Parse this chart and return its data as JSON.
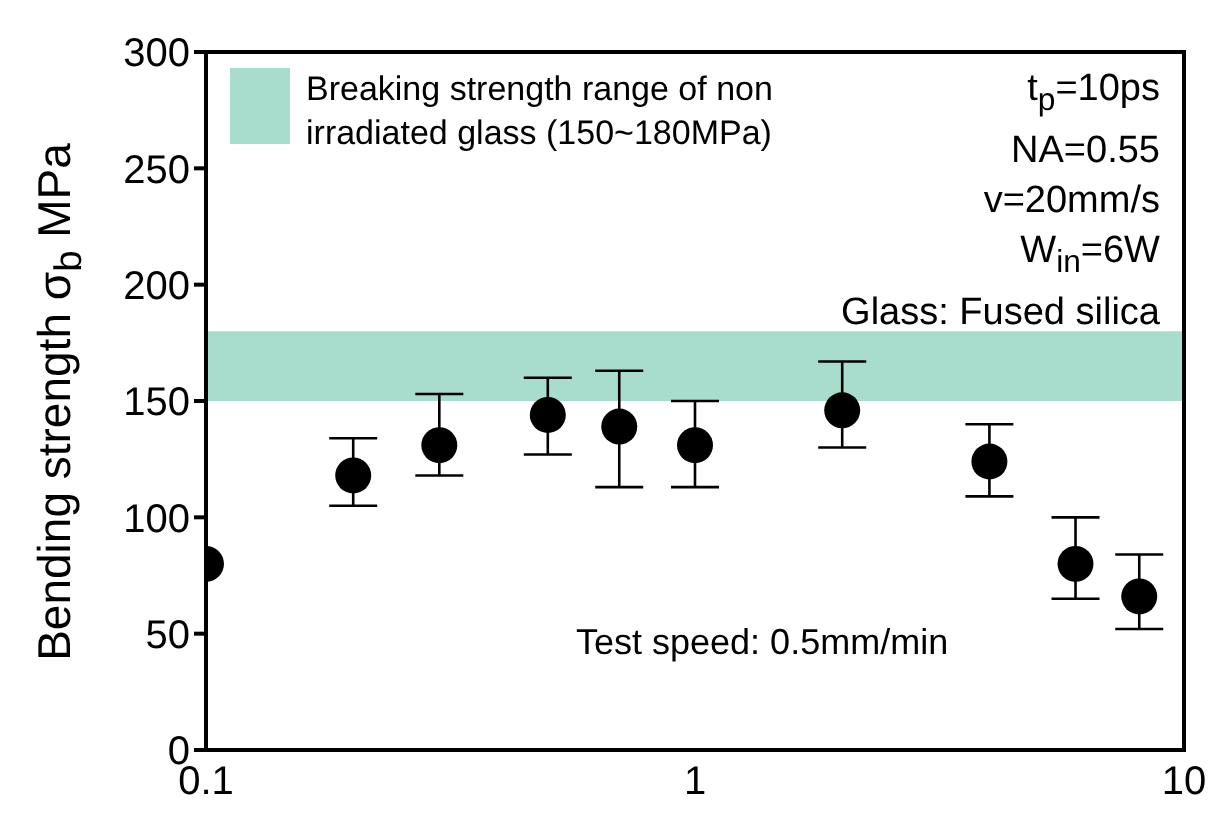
{
  "chart_data": {
    "type": "scatter",
    "ylabel": "Bending strength σ$_{b}$ MPa",
    "x": [
      0.1,
      0.2,
      0.3,
      0.5,
      0.7,
      1,
      2,
      4,
      6,
      8.1
    ],
    "series": [
      {
        "color": "#000000",
        "values": [
          80,
          118,
          131,
          144,
          139,
          131,
          146,
          124,
          80,
          66
        ],
        "errors": [
          null,
          [
            105,
            134
          ],
          [
            118,
            153
          ],
          [
            127,
            160
          ],
          [
            113,
            163
          ],
          [
            113,
            150
          ],
          [
            130,
            167
          ],
          [
            109,
            140
          ],
          [
            65,
            100
          ],
          [
            52,
            84
          ]
        ]
      }
    ],
    "marker": "circle",
    "log": "x",
    "xlim": [
      0.1,
      10
    ],
    "xticks": [
      0.1,
      1,
      10
    ],
    "ylim": [
      0,
      300
    ],
    "yticks": [
      0,
      50,
      100,
      150,
      200,
      250,
      300
    ],
    "bands": [
      {
        "axis": "y",
        "from": 150,
        "to": 180,
        "label": "Breaking strength range of non irradiated glass (150~180MPa)",
        "color": "#a8dccd"
      }
    ],
    "legend": "top left",
    "grid": false,
    "annotations": [
      "t$_{p}$=10ps",
      "NA=0.55",
      "v=20mm/s",
      "W$_{in}$=6W",
      "Glass: Fused silica",
      "Test speed: 0.5mm/min"
    ]
  }
}
